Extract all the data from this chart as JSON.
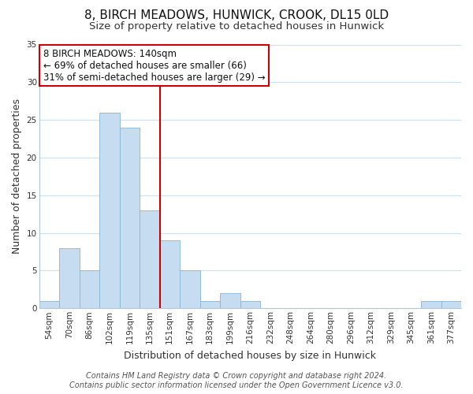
{
  "title": "8, BIRCH MEADOWS, HUNWICK, CROOK, DL15 0LD",
  "subtitle": "Size of property relative to detached houses in Hunwick",
  "xlabel": "Distribution of detached houses by size in Hunwick",
  "ylabel": "Number of detached properties",
  "bar_labels": [
    "54sqm",
    "70sqm",
    "86sqm",
    "102sqm",
    "119sqm",
    "135sqm",
    "151sqm",
    "167sqm",
    "183sqm",
    "199sqm",
    "216sqm",
    "232sqm",
    "248sqm",
    "264sqm",
    "280sqm",
    "296sqm",
    "312sqm",
    "329sqm",
    "345sqm",
    "361sqm",
    "377sqm"
  ],
  "bar_values": [
    1,
    8,
    5,
    26,
    24,
    13,
    9,
    5,
    1,
    2,
    1,
    0,
    0,
    0,
    0,
    0,
    0,
    0,
    0,
    1,
    1
  ],
  "bar_color": "#c6dcf0",
  "bar_edge_color": "#8ab4d4",
  "vline_color": "#cc0000",
  "annotation_line1": "8 BIRCH MEADOWS: 140sqm",
  "annotation_line2": "← 69% of detached houses are smaller (66)",
  "annotation_line3": "31% of semi-detached houses are larger (29) →",
  "annotation_box_color": "#ffffff",
  "annotation_box_edge": "#cc0000",
  "ylim": [
    0,
    35
  ],
  "yticks": [
    0,
    5,
    10,
    15,
    20,
    25,
    30,
    35
  ],
  "footer1": "Contains HM Land Registry data © Crown copyright and database right 2024.",
  "footer2": "Contains public sector information licensed under the Open Government Licence v3.0.",
  "bg_color": "#ffffff",
  "grid_color": "#ccdff0",
  "title_fontsize": 11,
  "subtitle_fontsize": 9.5,
  "xlabel_fontsize": 9,
  "ylabel_fontsize": 9,
  "tick_fontsize": 7.5,
  "ann_fontsize": 8.5,
  "footer_fontsize": 7
}
